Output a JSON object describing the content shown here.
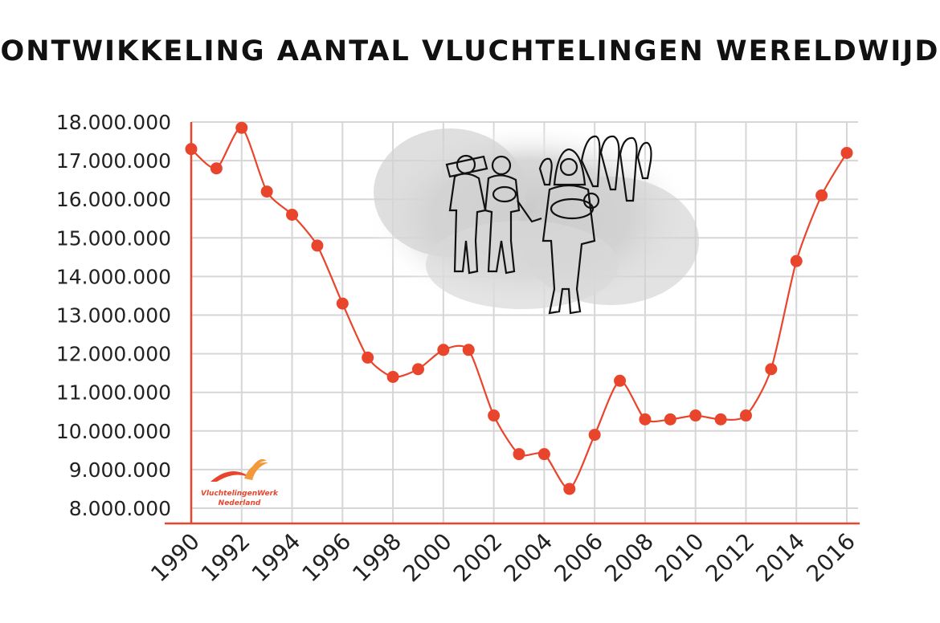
{
  "title": "ONTWIKKELING AANTAL VLUCHTELINGEN WERELDWIJD",
  "colors": {
    "line": "#e8452c",
    "grid": "#d6d6d6",
    "logo_orange": "#f29a3b"
  },
  "logo": {
    "line1": "VluchtelingenWerk",
    "line2": "Nederland"
  },
  "illustration": "refugees-illustration",
  "chart_data": {
    "type": "line",
    "title": "ONTWIKKELING AANTAL VLUCHTELINGEN WERELDWIJD",
    "xlabel": "",
    "ylabel": "",
    "x": [
      1990,
      1991,
      1992,
      1993,
      1994,
      1995,
      1996,
      1997,
      1998,
      1999,
      2000,
      2001,
      2002,
      2003,
      2004,
      2005,
      2006,
      2007,
      2008,
      2009,
      2010,
      2011,
      2012,
      2013,
      2014,
      2015,
      2016
    ],
    "series": [
      {
        "values": [
          17300000,
          16800000,
          17850000,
          16200000,
          15600000,
          14800000,
          13300000,
          11900000,
          11400000,
          11600000,
          12100000,
          12100000,
          10400000,
          9400000,
          9400000,
          8500000,
          9900000,
          11300000,
          10300000,
          10300000,
          10400000,
          10300000,
          10400000,
          11600000,
          14400000,
          16100000,
          17200000
        ]
      }
    ],
    "xticks": [
      "1990",
      "1992",
      "1994",
      "1996",
      "1998",
      "2000",
      "2002",
      "2004",
      "2006",
      "2008",
      "2010",
      "2012",
      "2014",
      "2016"
    ],
    "yticks": [
      "8.000.000",
      "9.000.000",
      "10.000.000",
      "11.000.000",
      "12.000.000",
      "13.000.000",
      "14.000.000",
      "15.000.000",
      "16.000.000",
      "17.000.000",
      "18.000.000"
    ],
    "xlim": [
      1990,
      2016
    ],
    "ylim": [
      7700000,
      18000000
    ],
    "grid": true,
    "legend": "none"
  }
}
